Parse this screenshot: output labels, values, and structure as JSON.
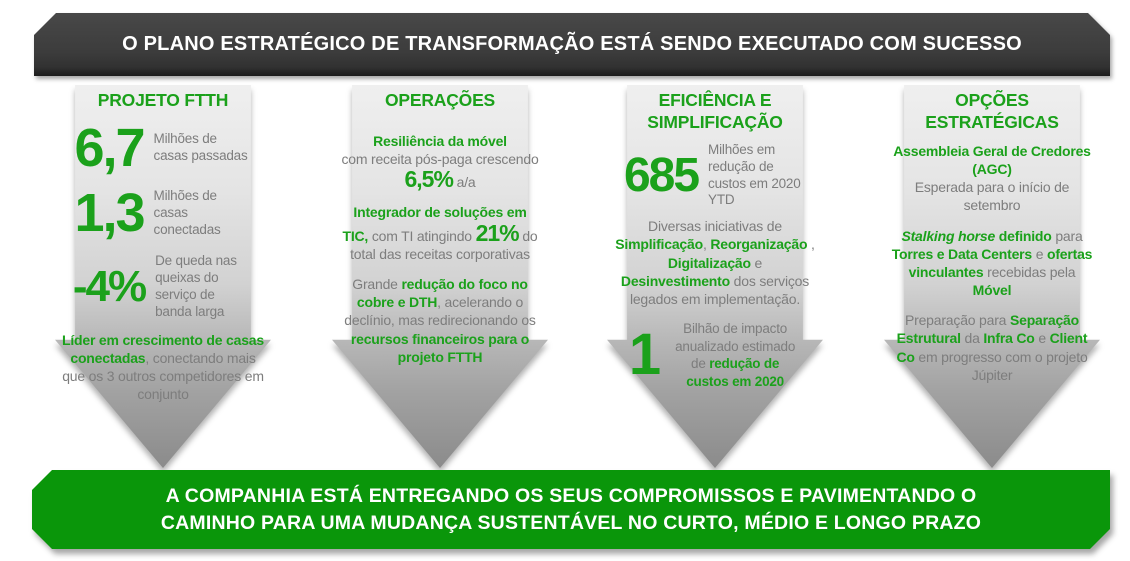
{
  "colors": {
    "accent_green": "#1ba11b",
    "footer_green": "#0a960a",
    "header_dark": "#3c3c3c",
    "body_gray": "#7d7d7d",
    "arrow_gray_top": "#efefef",
    "arrow_gray_bottom": "#8b8b8b"
  },
  "header": {
    "title": "O PLANO ESTRATÉGICO DE TRANSFORMAÇÃO ESTÁ SENDO EXECUTADO COM SUCESSO"
  },
  "footer": {
    "line1": "A COMPANHIA ESTÁ ENTREGANDO OS SEUS COMPROMISSOS E PAVIMENTANDO O",
    "line2": "CAMINHO PARA UMA MUDANÇA SUSTENTÁVEL NO CURTO, MÉDIO E LONGO PRAZO"
  },
  "columns": [
    {
      "title": "PROJETO FTTH",
      "stats": [
        {
          "value": "6,7",
          "label": "Milhões de casas passadas"
        },
        {
          "value": "1,3",
          "label": "Milhões de casas conectadas"
        },
        {
          "value": "-4%",
          "label": "De queda nas queixas do serviço de banda larga"
        }
      ],
      "paragraphs": [
        [
          {
            "t": "Líder em crescimento de casas conectadas",
            "s": "g"
          },
          {
            "t": ", conectando mais que os 3 outros competidores em conjunto",
            "s": "n"
          }
        ]
      ]
    },
    {
      "title": "OPERAÇÕES",
      "paragraphs": [
        [
          {
            "t": "Resiliência da móvel",
            "s": "g"
          },
          {
            "s": "br"
          },
          {
            "t": "com receita pós-paga crescendo ",
            "s": "n"
          },
          {
            "t": "6,5%",
            "s": "big"
          },
          {
            "t": " a/a",
            "s": "n"
          }
        ],
        [
          {
            "t": "Integrador de soluções em TIC,",
            "s": "g"
          },
          {
            "t": " com TI atingindo ",
            "s": "n"
          },
          {
            "t": "21%",
            "s": "big"
          },
          {
            "t": " do total das receitas  corporativas",
            "s": "n"
          }
        ],
        [
          {
            "t": "Grande ",
            "s": "n"
          },
          {
            "t": "redução do foco no cobre e DTH",
            "s": "g"
          },
          {
            "t": ", acelerando o declínio, mas redirecionando os ",
            "s": "n"
          },
          {
            "t": "recursos financeiros para o projeto FTTH",
            "s": "g"
          }
        ]
      ]
    },
    {
      "title": "EFICIÊNCIA E SIMPLIFICAÇÃO",
      "stats": [
        {
          "value": "685",
          "label": "Milhões em redução de custos em 2020 YTD"
        },
        {
          "value": "1"
        }
      ],
      "paragraphs": [
        [
          {
            "t": "Diversas iniciativas de ",
            "s": "n"
          },
          {
            "t": "Simplificação",
            "s": "g"
          },
          {
            "t": ", ",
            "s": "n"
          },
          {
            "t": "Reorganização",
            "s": "g"
          },
          {
            "t": " , ",
            "s": "n"
          },
          {
            "t": "Digitalização",
            "s": "g"
          },
          {
            "t": " e ",
            "s": "n"
          },
          {
            "t": "Desinvestimento",
            "s": "g"
          },
          {
            "t": " dos serviços legados em implementação.",
            "s": "n"
          }
        ],
        [
          {
            "t": "Bilhão de  impacto anualizado estimado de ",
            "s": "n"
          },
          {
            "t": "redução de custos em 2020",
            "s": "g"
          }
        ]
      ]
    },
    {
      "title": "OPÇÕES ESTRATÉGICAS",
      "paragraphs": [
        [
          {
            "t": "Assembleia Geral de Credores (AGC)",
            "s": "g"
          },
          {
            "s": "br"
          },
          {
            "t": "Esperada para o início de setembro",
            "s": "n"
          }
        ],
        [
          {
            "t": "Stalking horse",
            "s": "gi"
          },
          {
            "t": " definido",
            "s": "g"
          },
          {
            "t": " para ",
            "s": "n"
          },
          {
            "t": "Torres e Data Centers",
            "s": "g"
          },
          {
            "t": " e ",
            "s": "n"
          },
          {
            "t": "ofertas vinculantes",
            "s": "g"
          },
          {
            "t": " recebidas pela ",
            "s": "n"
          },
          {
            "t": "Móvel",
            "s": "g"
          }
        ],
        [
          {
            "t": "Preparação para ",
            "s": "n"
          },
          {
            "t": "Separação Estrutural",
            "s": "g"
          },
          {
            "t": " da ",
            "s": "n"
          },
          {
            "t": "Infra Co",
            "s": "g"
          },
          {
            "t": " e ",
            "s": "n"
          },
          {
            "t": "Client Co",
            "s": "g"
          },
          {
            "t": " em progresso com o projeto Júpiter",
            "s": "n"
          }
        ]
      ]
    }
  ]
}
